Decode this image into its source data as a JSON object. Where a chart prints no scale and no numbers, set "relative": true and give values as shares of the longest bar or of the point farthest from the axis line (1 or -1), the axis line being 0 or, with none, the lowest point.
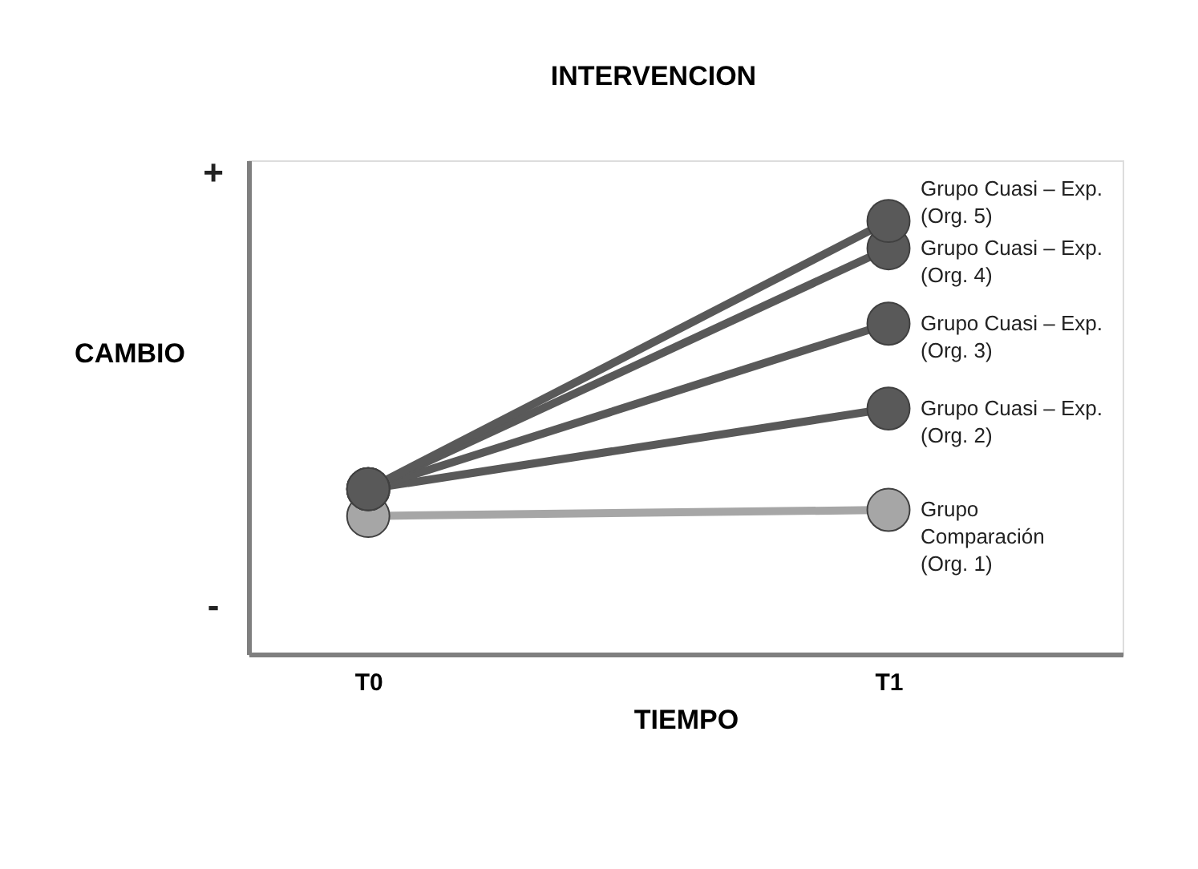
{
  "chart_data": {
    "type": "line",
    "title": "INTERVENCION",
    "xlabel": "TIEMPO",
    "ylabel": "CAMBIO",
    "categories": [
      "T0",
      "T1"
    ],
    "relative": true,
    "legend": false,
    "grid": false,
    "marker": "circle",
    "line_style": "solid",
    "annotations": [
      "+",
      "-"
    ],
    "series": [
      {
        "name": "Grupo\nComparación\n(Org. 1)",
        "color": "#a6a6a6",
        "values": [
          0.319,
          0.333
        ]
      },
      {
        "name": "Grupo Cuasi – Exp.\n(Org. 2)",
        "color": "#595959",
        "values": [
          0.381,
          0.567
        ]
      },
      {
        "name": "Grupo Cuasi – Exp.\n(Org. 3)",
        "color": "#595959",
        "values": [
          0.381,
          0.763
        ]
      },
      {
        "name": "Grupo Cuasi – Exp.\n(Org. 4)",
        "color": "#595959",
        "values": [
          0.381,
          0.937
        ]
      },
      {
        "name": "Grupo Cuasi – Exp.\n(Org. 5)",
        "color": "#595959",
        "values": [
          0.381,
          1
        ]
      }
    ]
  }
}
